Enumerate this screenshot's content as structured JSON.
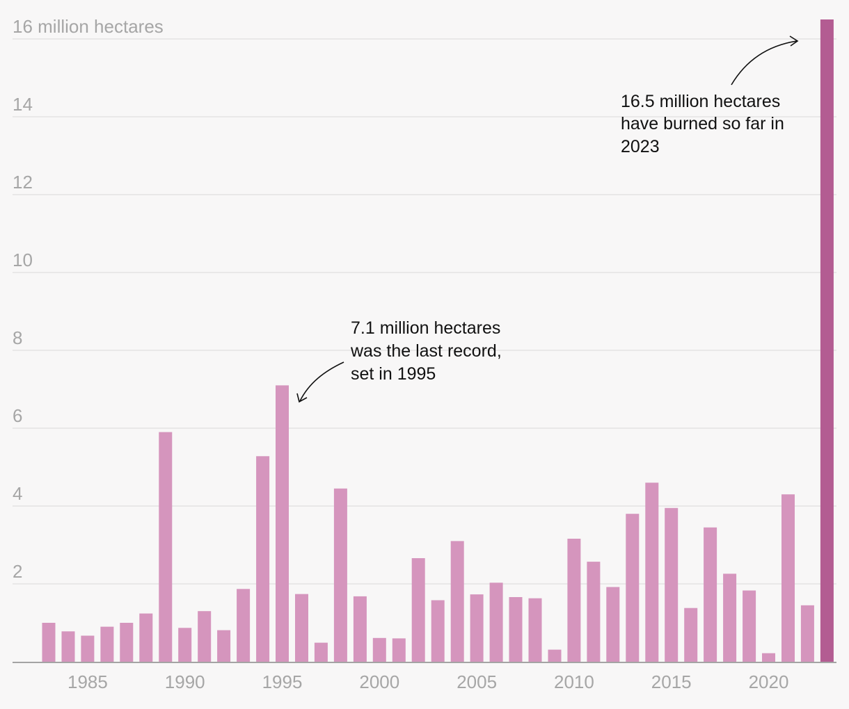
{
  "chart_data": {
    "type": "bar",
    "x": [
      1983,
      1984,
      1985,
      1986,
      1987,
      1988,
      1989,
      1990,
      1991,
      1992,
      1993,
      1994,
      1995,
      1996,
      1997,
      1998,
      1999,
      2000,
      2001,
      2002,
      2003,
      2004,
      2005,
      2006,
      2007,
      2008,
      2009,
      2010,
      2011,
      2012,
      2013,
      2014,
      2015,
      2016,
      2017,
      2018,
      2019,
      2020,
      2021,
      2022,
      2023
    ],
    "values": [
      1.0,
      0.78,
      0.67,
      0.9,
      1.0,
      1.24,
      5.9,
      0.87,
      1.3,
      0.81,
      1.87,
      5.28,
      7.1,
      1.74,
      0.49,
      4.45,
      1.68,
      0.61,
      0.6,
      2.66,
      1.58,
      3.1,
      1.73,
      2.03,
      1.66,
      1.63,
      0.31,
      3.16,
      2.57,
      1.92,
      3.8,
      4.6,
      3.95,
      1.38,
      3.45,
      2.26,
      1.83,
      0.22,
      4.3,
      1.45,
      16.5
    ],
    "ylim": [
      0,
      16.5
    ],
    "yticks": [
      "16 million hectares",
      "14",
      "12",
      "10",
      "8",
      "6",
      "4",
      "2"
    ],
    "ytick_values": [
      16,
      14,
      12,
      10,
      8,
      6,
      4,
      2
    ],
    "xticks": [
      "1985",
      "1990",
      "1995",
      "2000",
      "2005",
      "2010",
      "2015",
      "2020"
    ],
    "xtick_values": [
      1985,
      1990,
      1995,
      2000,
      2005,
      2010,
      2015,
      2020
    ],
    "grid": true,
    "highlight_year": 2023,
    "colors": {
      "bar": "#d595bd",
      "highlight": "#b35c92",
      "grid": "#e4e4e4",
      "axis": "#888888",
      "tick": "#a6a6a6"
    },
    "annotations": [
      {
        "lines": [
          "7.1 million hectares",
          "was the last record,",
          "set in 1995"
        ],
        "points_to": 1995
      },
      {
        "lines": [
          "16.5 million hectares",
          "have burned so far in",
          "2023"
        ],
        "points_to": 2023
      }
    ]
  }
}
